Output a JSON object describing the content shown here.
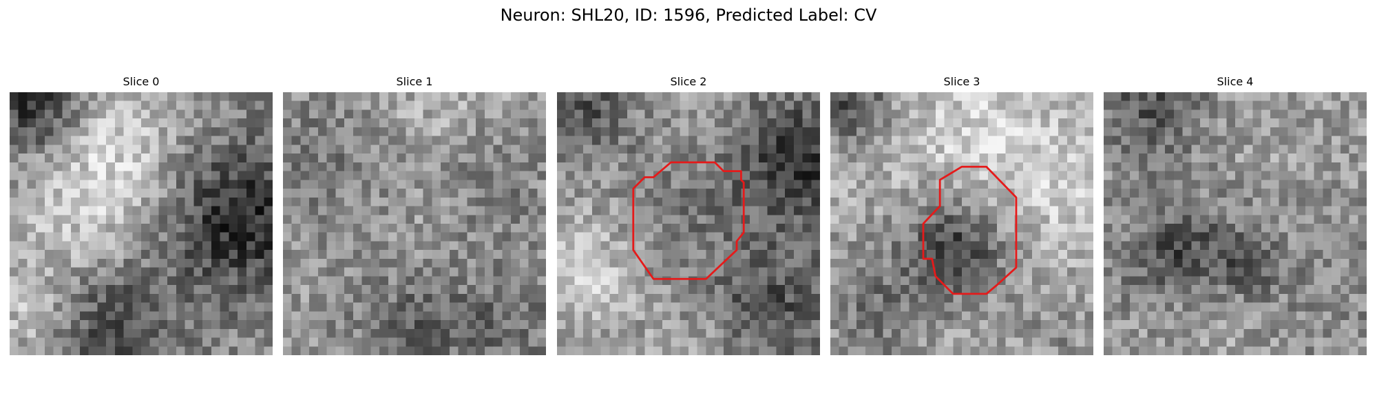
{
  "figure": {
    "title": "Neuron: SHL20, ID: 1596, Predicted Label: CV"
  },
  "colors": {
    "contour": "#e51a1a",
    "colormap": "gray"
  },
  "panels": [
    {
      "title": "Slice 0",
      "has_contour": false
    },
    {
      "title": "Slice 1",
      "has_contour": false
    },
    {
      "title": "Slice 2",
      "has_contour": true
    },
    {
      "title": "Slice 3",
      "has_contour": true
    },
    {
      "title": "Slice 4",
      "has_contour": false
    }
  ]
}
